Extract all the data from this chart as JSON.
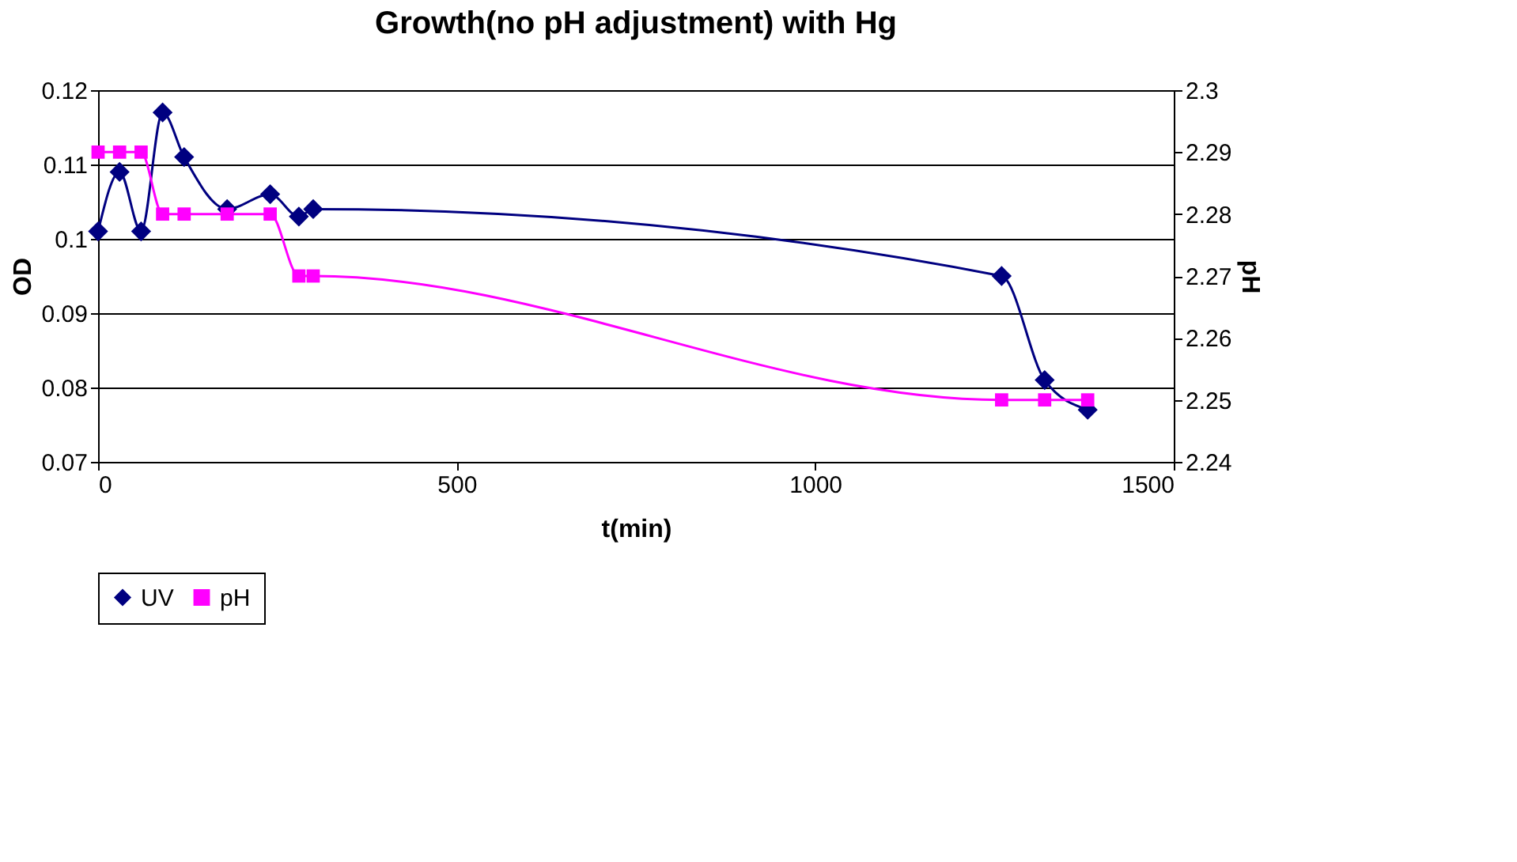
{
  "chart_data": {
    "type": "line",
    "title": "Growth(no pH adjustment) with Hg",
    "xlabel": "t(min)",
    "ylabel": "OD",
    "y2label": "pH",
    "xlim": [
      0,
      1500
    ],
    "xticks": [
      0,
      500,
      1000,
      1500
    ],
    "ylim": [
      0.07,
      0.12
    ],
    "yticks": [
      0.07,
      0.08,
      0.09,
      0.1,
      0.11,
      0.12
    ],
    "y2lim": [
      2.24,
      2.3
    ],
    "y2ticks": [
      2.24,
      2.25,
      2.26,
      2.27,
      2.28,
      2.29,
      2.3
    ],
    "grid": "y",
    "legend": "bottom",
    "series": [
      {
        "name": "UV",
        "color": "#000080",
        "marker": "diamond",
        "x": [
          0,
          30,
          60,
          90,
          120,
          180,
          240,
          280,
          300,
          1260,
          1320,
          1380
        ],
        "values": [
          0.101,
          0.109,
          0.101,
          0.117,
          0.111,
          0.104,
          0.106,
          0.103,
          0.104,
          0.095,
          0.081,
          0.077
        ]
      },
      {
        "name": "pH",
        "color": "#ff00ff",
        "marker": "square",
        "axis": "y2",
        "x": [
          0,
          30,
          60,
          90,
          120,
          180,
          240,
          280,
          300,
          1260,
          1320,
          1380
        ],
        "values": [
          2.29,
          2.29,
          2.29,
          2.28,
          2.28,
          2.28,
          2.28,
          2.27,
          2.27,
          2.25,
          2.25,
          2.25
        ]
      }
    ]
  }
}
